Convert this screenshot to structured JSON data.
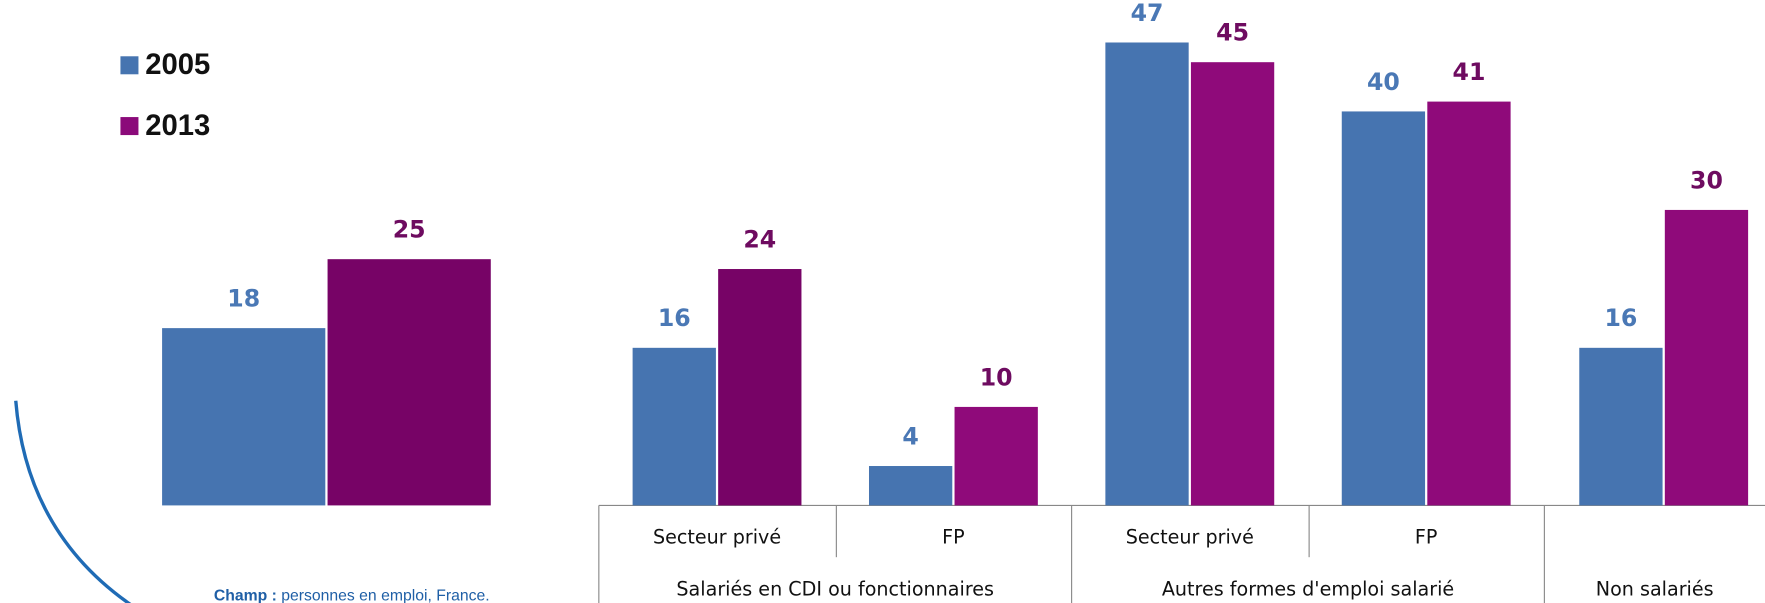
{
  "chart_data": {
    "type": "bar",
    "categories": [
      null,
      "Secteur privé",
      "FP",
      "Secteur privé",
      "FP",
      null
    ],
    "group_labels": [
      null,
      "Salariés en CDI ou fonctionnaires",
      "Salariés en CDI ou fonctionnaires",
      "Autres formes d'emploi salarié",
      "Autres formes d'emploi salarié",
      "Non salariés"
    ],
    "series": [
      {
        "name": "2005",
        "color": "#4674b0",
        "values": [
          18,
          16,
          4,
          47,
          40,
          16
        ]
      },
      {
        "name": "2013",
        "color": "#8b0a7a",
        "colors": [
          "#770366",
          "#770366",
          "#8f0a7a",
          "#8f0a7a",
          "#8f0a7a",
          "#8f0a7a"
        ],
        "values": [
          25,
          24,
          10,
          45,
          41,
          30
        ]
      }
    ],
    "footnote": {
      "label": "Champ :",
      "text": "personnes en emploi, France."
    }
  }
}
